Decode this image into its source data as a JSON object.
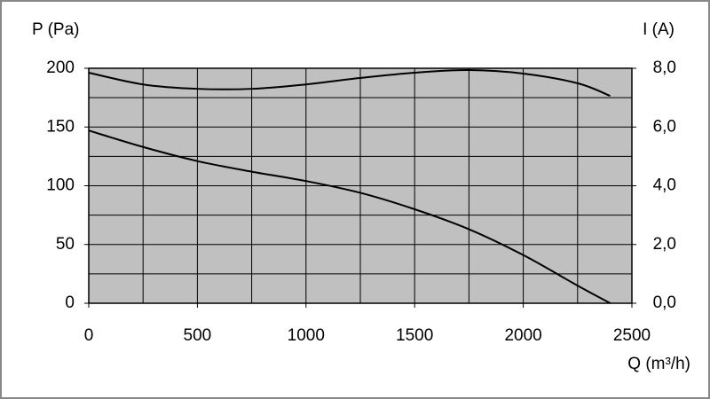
{
  "chart_data": {
    "type": "line",
    "y_label": "P (Pa)",
    "y2_label": "I (A)",
    "x_label": "Q (m³/h)",
    "x": [
      0,
      250,
      500,
      750,
      1000,
      1250,
      1500,
      1750,
      2000,
      2250,
      2400
    ],
    "series": [
      {
        "name": "P",
        "color": "#000000",
        "values": [
          147,
          133,
          121,
          112,
          104,
          94,
          80,
          63,
          41,
          15,
          0
        ]
      },
      {
        "name": "I",
        "color": "#000000",
        "axis": "y2",
        "values": [
          7.85,
          7.45,
          7.3,
          7.3,
          7.45,
          7.67,
          7.85,
          7.94,
          7.82,
          7.49,
          7.06
        ]
      }
    ],
    "xlim": [
      0,
      2500
    ],
    "xticks": [
      0,
      500,
      1000,
      1500,
      2000,
      2500
    ],
    "ylim": [
      0,
      200
    ],
    "yticks": [
      0,
      50,
      100,
      150,
      200
    ],
    "y2lim": [
      0,
      8
    ],
    "y2ticks": [
      {
        "value": 0,
        "label": "0,0"
      },
      {
        "value": 2,
        "label": "2,0"
      },
      {
        "value": 4,
        "label": "4,0"
      },
      {
        "value": 6,
        "label": "6,0"
      },
      {
        "value": 8,
        "label": "8,0"
      }
    ],
    "x_grid": [
      0,
      250,
      500,
      750,
      1000,
      1250,
      1500,
      1750,
      2000,
      2250,
      2500
    ],
    "y_grid": [
      0,
      25,
      50,
      75,
      100,
      125,
      150,
      175,
      200
    ],
    "plot_background": "#c0c0c0",
    "grid": true
  }
}
